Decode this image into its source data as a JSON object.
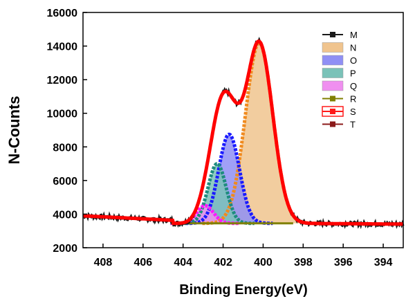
{
  "chart_data": {
    "type": "line",
    "title": "",
    "xlabel": "Binding  Energy(eV)",
    "ylabel": "N-Counts",
    "xlim": [
      409,
      393
    ],
    "ylim": [
      2000,
      16000
    ],
    "x_ticks": [
      408,
      406,
      404,
      402,
      400,
      398,
      396,
      394
    ],
    "y_ticks": [
      2000,
      4000,
      6000,
      8000,
      10000,
      12000,
      14000,
      16000
    ],
    "background": 3450,
    "components": [
      {
        "name": "N",
        "center": 400.2,
        "amplitude": 10750,
        "sigma": 0.68,
        "fill": "#f0c48e",
        "line": "#f08a1e"
      },
      {
        "name": "O",
        "center": 401.7,
        "amplitude": 5300,
        "sigma": 0.52,
        "fill": "#8f8ff5",
        "line": "#1a1aff"
      },
      {
        "name": "P",
        "center": 402.3,
        "amplitude": 3550,
        "sigma": 0.45,
        "fill": "#7ac2b8",
        "line": "#1e8c7e"
      },
      {
        "name": "Q",
        "center": 402.9,
        "amplitude": 1050,
        "sigma": 0.42,
        "fill": "#f08ff0",
        "line": "#ff1aff"
      }
    ],
    "legend": [
      {
        "label": "M",
        "style": "line-square",
        "color": "#1a1a1a"
      },
      {
        "label": "N",
        "style": "fill",
        "color": "#f0c48e"
      },
      {
        "label": "O",
        "style": "fill",
        "color": "#8f8ff5"
      },
      {
        "label": "P",
        "style": "fill",
        "color": "#7ac2b8"
      },
      {
        "label": "Q",
        "style": "fill",
        "color": "#f08ff0"
      },
      {
        "label": "R",
        "style": "line-square",
        "color": "#808000"
      },
      {
        "label": "S",
        "style": "box-square",
        "color": "#ff1a1a"
      },
      {
        "label": "T",
        "style": "line-square",
        "color": "#8b1a1a"
      }
    ],
    "legend_position": "top-right",
    "series_styles": {
      "raw": "#1a1a1a",
      "background": "#808000",
      "envelope": "#ff0000"
    }
  }
}
